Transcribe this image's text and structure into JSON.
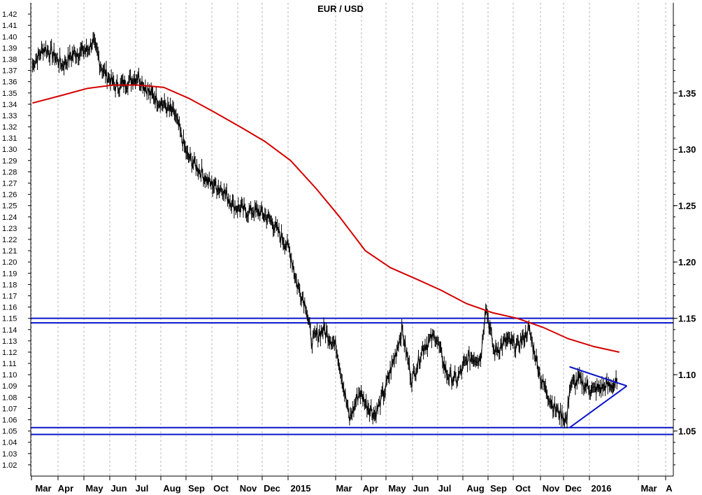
{
  "chart_data": {
    "type": "line",
    "title": "EUR / USD",
    "xlabel": "",
    "ylabel": "",
    "ylim": [
      1.01,
      1.43
    ],
    "grid": true,
    "x_ticks": [
      "Mar",
      "Apr",
      "May",
      "Jun",
      "Jul",
      "Aug",
      "Sep",
      "Oct",
      "Nov",
      "Dec",
      "2015",
      "Mar",
      "Apr",
      "May",
      "Jun",
      "Jul",
      "Aug",
      "Sep",
      "Oct",
      "Nov",
      "Dec",
      "2016",
      "Mar",
      "A"
    ],
    "y_ticks_left": [
      "1.02",
      "1.03",
      "1.04",
      "1.05",
      "1.06",
      "1.07",
      "1.08",
      "1.09",
      "1.10",
      "1.11",
      "1.12",
      "1.13",
      "1.14",
      "1.15",
      "1.16",
      "1.17",
      "1.18",
      "1.19",
      "1.20",
      "1.21",
      "1.22",
      "1.23",
      "1.24",
      "1.25",
      "1.26",
      "1.27",
      "1.28",
      "1.29",
      "1.30",
      "1.31",
      "1.32",
      "1.33",
      "1.34",
      "1.35",
      "1.36",
      "1.37",
      "1.38",
      "1.39",
      "1.40",
      "1.41",
      "1.42"
    ],
    "y_ticks_right": [
      "1.05",
      "1.10",
      "1.15",
      "1.20",
      "1.25",
      "1.30",
      "1.35"
    ],
    "series": [
      {
        "role": "price",
        "color": "#000000",
        "x": [
          "2014-02-24",
          "2014-03-10",
          "2014-03-20",
          "2014-04-01",
          "2014-04-15",
          "2014-04-30",
          "2014-05-08",
          "2014-05-20",
          "2014-06-05",
          "2014-06-20",
          "2014-07-01",
          "2014-07-15",
          "2014-07-31",
          "2014-08-15",
          "2014-08-29",
          "2014-09-10",
          "2014-09-25",
          "2014-10-10",
          "2014-10-25",
          "2014-11-07",
          "2014-11-25",
          "2014-12-10",
          "2014-12-31",
          "2015-01-09",
          "2015-01-20",
          "2015-01-26",
          "2015-02-10",
          "2015-02-25",
          "2015-03-13",
          "2015-03-25",
          "2015-04-01",
          "2015-04-13",
          "2015-04-24",
          "2015-05-06",
          "2015-05-15",
          "2015-05-27",
          "2015-06-10",
          "2015-06-25",
          "2015-07-08",
          "2015-07-20",
          "2015-08-03",
          "2015-08-18",
          "2015-08-24",
          "2015-09-03",
          "2015-09-18",
          "2015-10-01",
          "2015-10-15",
          "2015-10-30",
          "2015-11-15",
          "2015-11-30",
          "2015-12-03",
          "2015-12-15",
          "2015-12-31",
          "2016-01-15",
          "2016-01-29"
        ],
        "y": [
          1.375,
          1.39,
          1.385,
          1.375,
          1.385,
          1.388,
          1.395,
          1.37,
          1.355,
          1.36,
          1.365,
          1.35,
          1.34,
          1.33,
          1.295,
          1.285,
          1.27,
          1.265,
          1.25,
          1.245,
          1.245,
          1.235,
          1.21,
          1.18,
          1.16,
          1.13,
          1.14,
          1.125,
          1.06,
          1.085,
          1.075,
          1.065,
          1.085,
          1.115,
          1.14,
          1.095,
          1.125,
          1.135,
          1.1,
          1.095,
          1.115,
          1.115,
          1.162,
          1.12,
          1.13,
          1.125,
          1.14,
          1.095,
          1.07,
          1.06,
          1.09,
          1.095,
          1.086,
          1.09,
          1.092
        ]
      },
      {
        "role": "moving-average",
        "color": "#d40000",
        "x": [
          "2014-02-24",
          "2014-04-01",
          "2014-05-01",
          "2014-06-01",
          "2014-07-01",
          "2014-08-01",
          "2014-09-01",
          "2014-10-01",
          "2014-11-01",
          "2014-12-01",
          "2015-01-01",
          "2015-02-01",
          "2015-03-01",
          "2015-04-01",
          "2015-05-01",
          "2015-06-01",
          "2015-07-01",
          "2015-08-01",
          "2015-09-01",
          "2015-10-01",
          "2015-11-01",
          "2015-12-01",
          "2016-01-01",
          "2016-02-01"
        ],
        "y": [
          1.341,
          1.348,
          1.354,
          1.357,
          1.357,
          1.355,
          1.345,
          1.333,
          1.32,
          1.307,
          1.29,
          1.265,
          1.24,
          1.21,
          1.195,
          1.185,
          1.175,
          1.163,
          1.155,
          1.15,
          1.142,
          1.132,
          1.125,
          1.12
        ]
      }
    ],
    "horizontal_lines": [
      1.15,
      1.146,
      1.053,
      1.047
    ],
    "triangle": {
      "upper": {
        "x": [
          "2015-12-03",
          "2016-02-10"
        ],
        "y": [
          1.107,
          1.09
        ]
      },
      "lower": {
        "x": [
          "2015-12-03",
          "2016-02-10"
        ],
        "y": [
          1.053,
          1.09
        ]
      }
    }
  }
}
